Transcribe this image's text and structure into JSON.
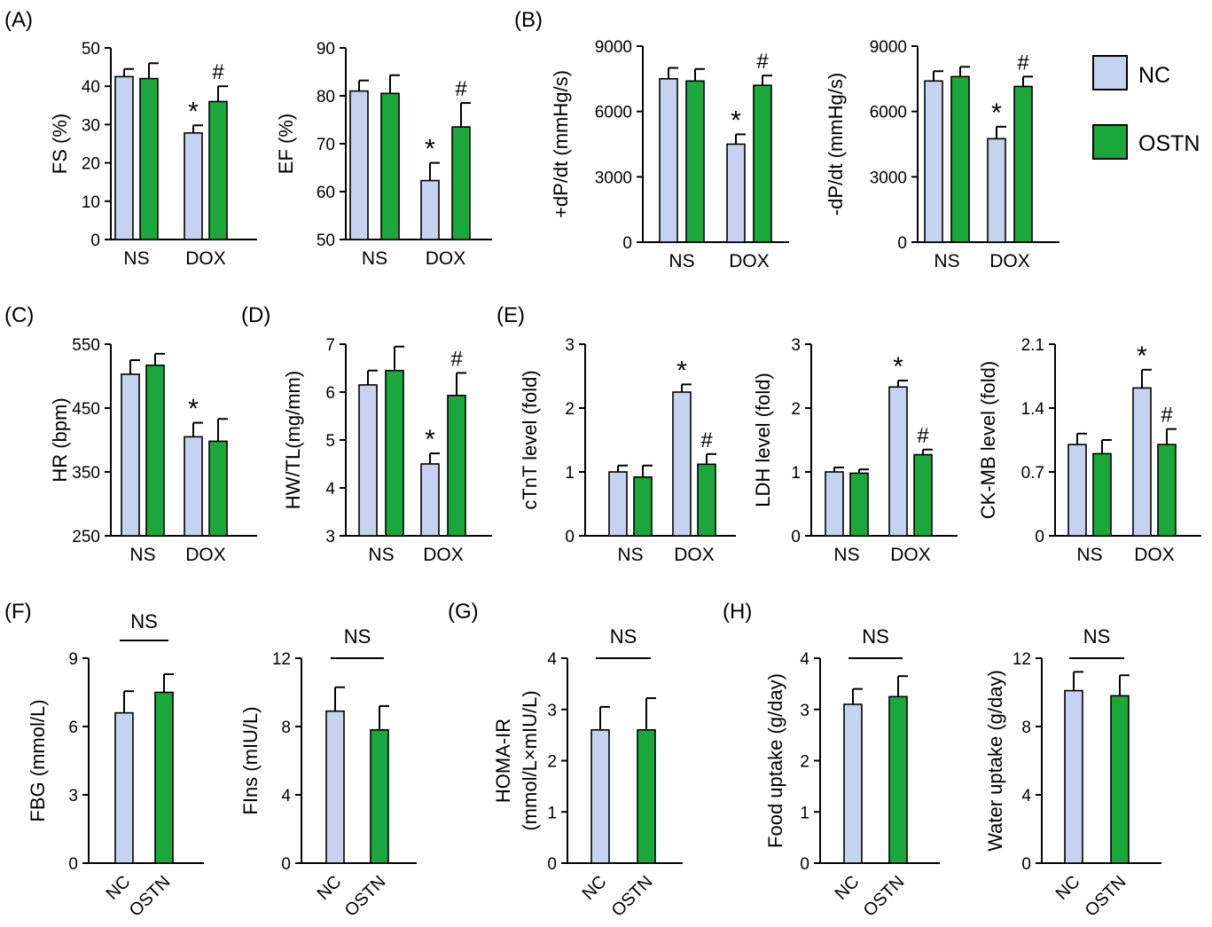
{
  "colors": {
    "NC": "#c5d3f0",
    "OSTN": "#1aa83c",
    "axis": "#000000"
  },
  "legend": [
    {
      "label": "NC",
      "color": "#c5d3f0"
    },
    {
      "label": "OSTN",
      "color": "#1aa83c"
    }
  ],
  "panel_labels": [
    "(A)",
    "(B)",
    "(C)",
    "(D)",
    "(E)",
    "(F)",
    "(G)",
    "(H)"
  ],
  "chart_data": [
    {
      "id": "A1",
      "panel": "(A)",
      "type": "bar",
      "ylabel": "FS (%)",
      "categories": [
        "NS",
        "DOX"
      ],
      "yticks": [
        "0",
        "10",
        "20",
        "30",
        "40",
        "50"
      ],
      "ylim": [
        0,
        50
      ],
      "series": [
        {
          "name": "NC",
          "values": [
            42.5,
            27.8
          ],
          "errors": [
            2.0,
            2.0
          ]
        },
        {
          "name": "OSTN",
          "values": [
            42.0,
            36.0
          ],
          "errors": [
            4.0,
            4.0
          ]
        }
      ],
      "marks": [
        "",
        "",
        "*",
        "#"
      ]
    },
    {
      "id": "A2",
      "type": "bar",
      "ylabel": "EF (%)",
      "categories": [
        "NS",
        "DOX"
      ],
      "yticks": [
        "50",
        "60",
        "70",
        "80",
        "90"
      ],
      "ylim": [
        50,
        90
      ],
      "series": [
        {
          "name": "NC",
          "values": [
            81.0,
            62.3
          ],
          "errors": [
            2.2,
            3.7
          ]
        },
        {
          "name": "OSTN",
          "values": [
            80.5,
            73.5
          ],
          "errors": [
            3.8,
            5.0
          ]
        }
      ],
      "marks": [
        "",
        "",
        "*",
        "#"
      ]
    },
    {
      "id": "B1",
      "panel": "(B)",
      "type": "bar",
      "ylabel": "+dP/dt (mmHg/s)",
      "categories": [
        "NS",
        "DOX"
      ],
      "yticks": [
        "0",
        "3000",
        "6000",
        "9000"
      ],
      "ylim": [
        0,
        9000
      ],
      "series": [
        {
          "name": "NC",
          "values": [
            7500,
            4500
          ],
          "errors": [
            500,
            450
          ]
        },
        {
          "name": "OSTN",
          "values": [
            7400,
            7200
          ],
          "errors": [
            550,
            450
          ]
        }
      ],
      "marks": [
        "",
        "",
        "*",
        "#"
      ]
    },
    {
      "id": "B2",
      "type": "bar",
      "ylabel": "-dP/dt (mmHg/s)",
      "categories": [
        "NS",
        "DOX"
      ],
      "yticks": [
        "0",
        "3000",
        "6000",
        "9000"
      ],
      "ylim": [
        0,
        9000
      ],
      "series": [
        {
          "name": "NC",
          "values": [
            7400,
            4750
          ],
          "errors": [
            450,
            550
          ]
        },
        {
          "name": "OSTN",
          "values": [
            7600,
            7150
          ],
          "errors": [
            450,
            450
          ]
        }
      ],
      "marks": [
        "",
        "",
        "*",
        "#"
      ]
    },
    {
      "id": "C",
      "panel": "(C)",
      "type": "bar",
      "ylabel": "HR (bpm)",
      "categories": [
        "NS",
        "DOX"
      ],
      "yticks": [
        "250",
        "350",
        "450",
        "550"
      ],
      "ylim": [
        250,
        550
      ],
      "series": [
        {
          "name": "NC",
          "values": [
            503,
            405
          ],
          "errors": [
            22,
            22
          ]
        },
        {
          "name": "OSTN",
          "values": [
            517,
            398
          ],
          "errors": [
            18,
            35
          ]
        }
      ],
      "marks": [
        "",
        "",
        "*",
        ""
      ]
    },
    {
      "id": "D",
      "panel": "(D)",
      "type": "bar",
      "ylabel": "HW/TL(mg/mm)",
      "categories": [
        "NS",
        "DOX"
      ],
      "yticks": [
        "3",
        "4",
        "5",
        "6",
        "7"
      ],
      "ylim": [
        3,
        7
      ],
      "series": [
        {
          "name": "NC",
          "values": [
            6.15,
            4.5
          ],
          "errors": [
            0.3,
            0.22
          ]
        },
        {
          "name": "OSTN",
          "values": [
            6.45,
            5.93
          ],
          "errors": [
            0.5,
            0.47
          ]
        }
      ],
      "marks": [
        "",
        "",
        "*",
        "#"
      ]
    },
    {
      "id": "E1",
      "panel": "(E)",
      "type": "bar",
      "ylabel": "cTnT level (fold)",
      "categories": [
        "NS",
        "DOX"
      ],
      "yticks": [
        "0",
        "1",
        "2",
        "3"
      ],
      "ylim": [
        0,
        3
      ],
      "series": [
        {
          "name": "NC",
          "values": [
            1.0,
            2.25
          ],
          "errors": [
            0.1,
            0.12
          ]
        },
        {
          "name": "OSTN",
          "values": [
            0.92,
            1.12
          ],
          "errors": [
            0.18,
            0.16
          ]
        }
      ],
      "marks": [
        "",
        "",
        "*",
        "#"
      ]
    },
    {
      "id": "E2",
      "type": "bar",
      "ylabel": "LDH level (fold)",
      "categories": [
        "NS",
        "DOX"
      ],
      "yticks": [
        "0",
        "1",
        "2",
        "3"
      ],
      "ylim": [
        0,
        3
      ],
      "series": [
        {
          "name": "NC",
          "values": [
            1.0,
            2.33
          ],
          "errors": [
            0.07,
            0.1
          ]
        },
        {
          "name": "OSTN",
          "values": [
            0.98,
            1.27
          ],
          "errors": [
            0.06,
            0.08
          ]
        }
      ],
      "marks": [
        "",
        "",
        "*",
        "#"
      ]
    },
    {
      "id": "E3",
      "type": "bar",
      "ylabel": "CK-MB level (fold)",
      "categories": [
        "NS",
        "DOX"
      ],
      "yticks": [
        "0",
        "0.7",
        "1.4",
        "2.1"
      ],
      "ylim": [
        0,
        2.1
      ],
      "series": [
        {
          "name": "NC",
          "values": [
            1.0,
            1.62
          ],
          "errors": [
            0.12,
            0.2
          ]
        },
        {
          "name": "OSTN",
          "values": [
            0.9,
            1.0
          ],
          "errors": [
            0.15,
            0.17
          ]
        }
      ],
      "marks": [
        "",
        "",
        "*",
        "#"
      ]
    },
    {
      "id": "F1",
      "panel": "(F)",
      "type": "bar",
      "ylabel": "FBG (mmol/L)",
      "categories": [
        "NC",
        "OSTN"
      ],
      "yticks": [
        "0",
        "3",
        "6",
        "9"
      ],
      "ylim": [
        0,
        9
      ],
      "values": [
        6.6,
        7.5
      ],
      "errors": [
        0.95,
        0.8
      ],
      "significance": "NS"
    },
    {
      "id": "F2",
      "type": "bar",
      "ylabel": "FIns (mIU/L)",
      "categories": [
        "NC",
        "OSTN"
      ],
      "yticks": [
        "0",
        "4",
        "8",
        "12"
      ],
      "ylim": [
        0,
        12
      ],
      "values": [
        8.9,
        7.8
      ],
      "errors": [
        1.4,
        1.4
      ],
      "significance": "NS"
    },
    {
      "id": "G",
      "panel": "(G)",
      "type": "bar",
      "ylabel": "HOMA-IR",
      "ylabel2": "(mmol/L×mIU/L)",
      "categories": [
        "NC",
        "OSTN"
      ],
      "yticks": [
        "0",
        "1",
        "2",
        "3",
        "4"
      ],
      "ylim": [
        0,
        4
      ],
      "values": [
        2.6,
        2.6
      ],
      "errors": [
        0.45,
        0.62
      ],
      "significance": "NS"
    },
    {
      "id": "H1",
      "panel": "(H)",
      "type": "bar",
      "ylabel": "Food uptake (g/day)",
      "categories": [
        "NC",
        "OSTN"
      ],
      "yticks": [
        "0",
        "1",
        "2",
        "3",
        "4"
      ],
      "ylim": [
        0,
        4
      ],
      "values": [
        3.1,
        3.25
      ],
      "errors": [
        0.3,
        0.4
      ],
      "significance": "NS"
    },
    {
      "id": "H2",
      "type": "bar",
      "ylabel": "Water uptake (g/day)",
      "categories": [
        "NC",
        "OSTN"
      ],
      "yticks": [
        "0",
        "4",
        "8",
        "12"
      ],
      "ylim": [
        0,
        12
      ],
      "values": [
        10.1,
        9.8
      ],
      "errors": [
        1.1,
        1.2
      ],
      "significance": "NS"
    }
  ]
}
